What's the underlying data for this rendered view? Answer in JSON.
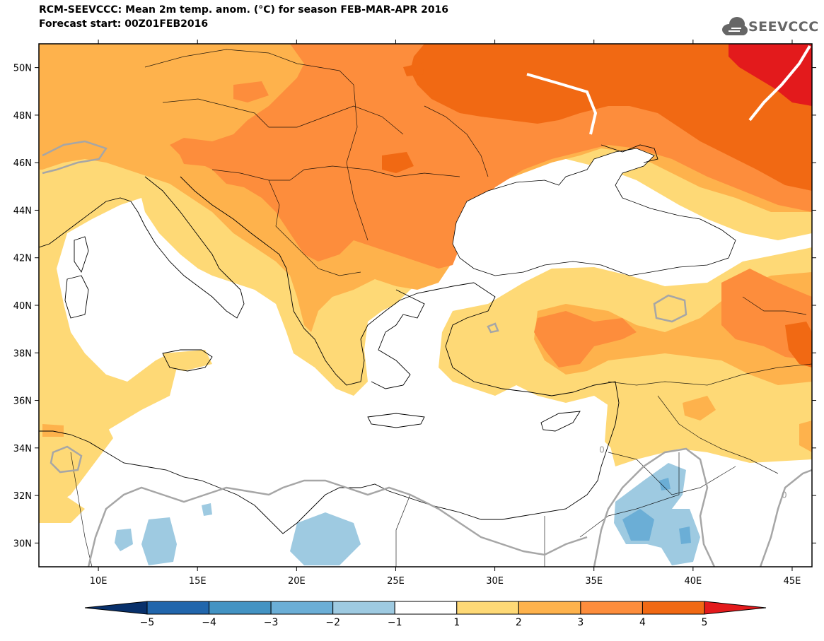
{
  "header": {
    "title": "RCM-SEEVCCC: Mean 2m temp. anom. (°C) for season FEB-MAR-APR 2016",
    "subtitle": "Forecast start: 00Z01FEB2016",
    "logo_text": "SEEVCCC",
    "logo_icon": "cloud-icon"
  },
  "map": {
    "projection": "lat-lon",
    "lon_range": [
      7,
      46
    ],
    "lat_range": [
      29,
      51
    ],
    "lat_ticks": [
      {
        "value": 30,
        "label": "30N"
      },
      {
        "value": 32,
        "label": "32N"
      },
      {
        "value": 34,
        "label": "34N"
      },
      {
        "value": 36,
        "label": "36N"
      },
      {
        "value": 38,
        "label": "38N"
      },
      {
        "value": 40,
        "label": "40N"
      },
      {
        "value": 42,
        "label": "42N"
      },
      {
        "value": 44,
        "label": "44N"
      },
      {
        "value": 46,
        "label": "46N"
      },
      {
        "value": 48,
        "label": "48N"
      },
      {
        "value": 50,
        "label": "50N"
      }
    ],
    "lon_ticks": [
      {
        "value": 10,
        "label": "10E"
      },
      {
        "value": 15,
        "label": "15E"
      },
      {
        "value": 20,
        "label": "20E"
      },
      {
        "value": 25,
        "label": "25E"
      },
      {
        "value": 30,
        "label": "30E"
      },
      {
        "value": 35,
        "label": "35E"
      },
      {
        "value": 40,
        "label": "40E"
      },
      {
        "value": 45,
        "label": "45E"
      }
    ],
    "contour_labels": [
      {
        "text": "0",
        "lon": 35.4,
        "lat": 33.8
      },
      {
        "text": "0",
        "lon": 44.6,
        "lat": 31.9
      }
    ]
  },
  "colorbar": {
    "levels": [
      -5,
      -4,
      -3,
      -2,
      -1,
      1,
      2,
      3,
      4,
      5
    ],
    "labels": [
      "−5",
      "−4",
      "−3",
      "−2",
      "−1",
      "1",
      "2",
      "3",
      "4",
      "5"
    ],
    "colors": [
      "#08306b",
      "#2166ac",
      "#4393c3",
      "#6baed6",
      "#9ecae1",
      "#ffffff",
      "#fed976",
      "#feb24c",
      "#fd8d3c",
      "#f16913",
      "#e31a1c"
    ]
  }
}
